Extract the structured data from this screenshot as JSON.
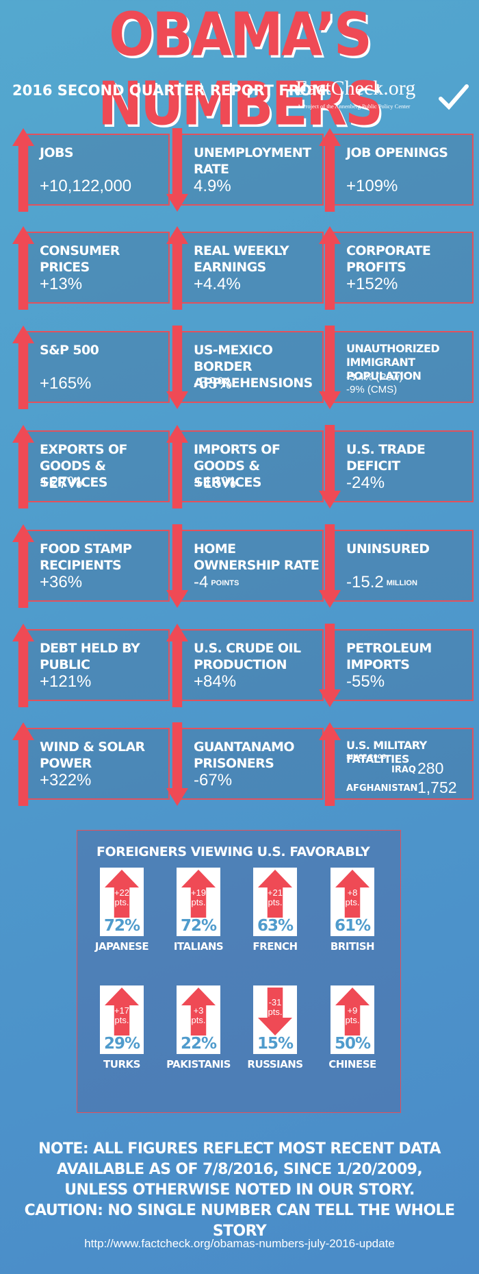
{
  "header": {
    "title": "OBAMA’S NUMBERS",
    "subtitle": "2016 SECOND QUARTER REPORT FROM",
    "logo_text": "FactCheck.org",
    "logo_tagline": "A Project of the Annenberg Public Policy Center"
  },
  "colors": {
    "accent": "#ef4a55",
    "background": "#4f9bcc",
    "panel_border": "#e3515c"
  },
  "stats": [
    {
      "label": "JOBS",
      "value": "+10,122,000",
      "direction": "up"
    },
    {
      "label": "UNEMPLOYMENT RATE",
      "value": "4.9%",
      "direction": "down"
    },
    {
      "label": "JOB OPENINGS",
      "value": "+109%",
      "direction": "up"
    },
    {
      "label": "CONSUMER PRICES",
      "value": "+13%",
      "direction": "up"
    },
    {
      "label": "REAL WEEKLY EARNINGS",
      "value": "+4.4%",
      "direction": "up"
    },
    {
      "label": "CORPORATE PROFITS",
      "value": "+152%",
      "direction": "up"
    },
    {
      "label": "S&P 500",
      "value": "+165%",
      "direction": "up"
    },
    {
      "label": "US-MEXICO BORDER APPREHENSIONS",
      "value": "-53%",
      "direction": "down"
    },
    {
      "label": "UNAUTHORIZED IMMIGRANT POPULATION",
      "value_pew": "-3.4% (Pew)",
      "value_cms": "-9% (CMS)",
      "direction": "down"
    },
    {
      "label": "EXPORTS OF GOODS & SERVICES",
      "value": "+27%",
      "direction": "up"
    },
    {
      "label": "IMPORTS OF GOODS & SERVICES",
      "value": "+16%",
      "direction": "up"
    },
    {
      "label": "U.S. TRADE DEFICIT",
      "value": "-24%",
      "direction": "down"
    },
    {
      "label": "FOOD STAMP RECIPIENTS",
      "value": "+36%",
      "direction": "up"
    },
    {
      "label": "HOME OWNERSHIP RATE",
      "value": "-4",
      "unit": "POINTS",
      "direction": "down"
    },
    {
      "label": "UNINSURED",
      "value": "-15.2",
      "unit": "MILLION",
      "direction": "down"
    },
    {
      "label": "DEBT HELD BY PUBLIC",
      "value": "+121%",
      "direction": "up"
    },
    {
      "label": "U.S. CRUDE OIL PRODUCTION",
      "value": "+84%",
      "direction": "up"
    },
    {
      "label": "PETROLEUM IMPORTS",
      "value": "-55%",
      "direction": "down"
    },
    {
      "label": "WIND & SOLAR POWER",
      "value": "+322%",
      "direction": "up"
    },
    {
      "label": "GUANTANAMO PRISONERS",
      "value": "-67%",
      "direction": "down"
    },
    {
      "label": "U.S. MILITARY FATALITIES",
      "since": "SINCE 2008",
      "iraq_label": "IRAQ",
      "iraq_value": "280",
      "afg_label": "AFGHANISTAN",
      "afg_value": "1,752",
      "direction": "up"
    }
  ],
  "favorability": {
    "title": "FOREIGNERS VIEWING U.S. FAVORABLY",
    "pts_label": "pts.",
    "items": [
      {
        "country": "JAPANESE",
        "change": "+22",
        "percent": "72%",
        "direction": "up"
      },
      {
        "country": "ITALIANS",
        "change": "+19",
        "percent": "72%",
        "direction": "up"
      },
      {
        "country": "FRENCH",
        "change": "+21",
        "percent": "63%",
        "direction": "up"
      },
      {
        "country": "BRITISH",
        "change": "+8",
        "percent": "61%",
        "direction": "up"
      },
      {
        "country": "TURKS",
        "change": "+17",
        "percent": "29%",
        "direction": "up"
      },
      {
        "country": "PAKISTANIS",
        "change": "+3",
        "percent": "22%",
        "direction": "up"
      },
      {
        "country": "RUSSIANS",
        "change": "-31",
        "percent": "15%",
        "direction": "down"
      },
      {
        "country": "CHINESE",
        "change": "+9",
        "percent": "50%",
        "direction": "up"
      }
    ]
  },
  "note": {
    "line1": "NOTE:  ALL FIGURES REFLECT MOST RECENT DATA",
    "line2": "AVAILABLE AS OF 7/8/2016, SINCE 1/20/2009,",
    "line3": "UNLESS OTHERWISE NOTED IN OUR STORY.",
    "line4": "CAUTION: NO SINGLE NUMBER CAN TELL THE WHOLE STORY"
  },
  "footer_url": "http://www.factcheck.org/obamas-numbers-july-2016-update"
}
